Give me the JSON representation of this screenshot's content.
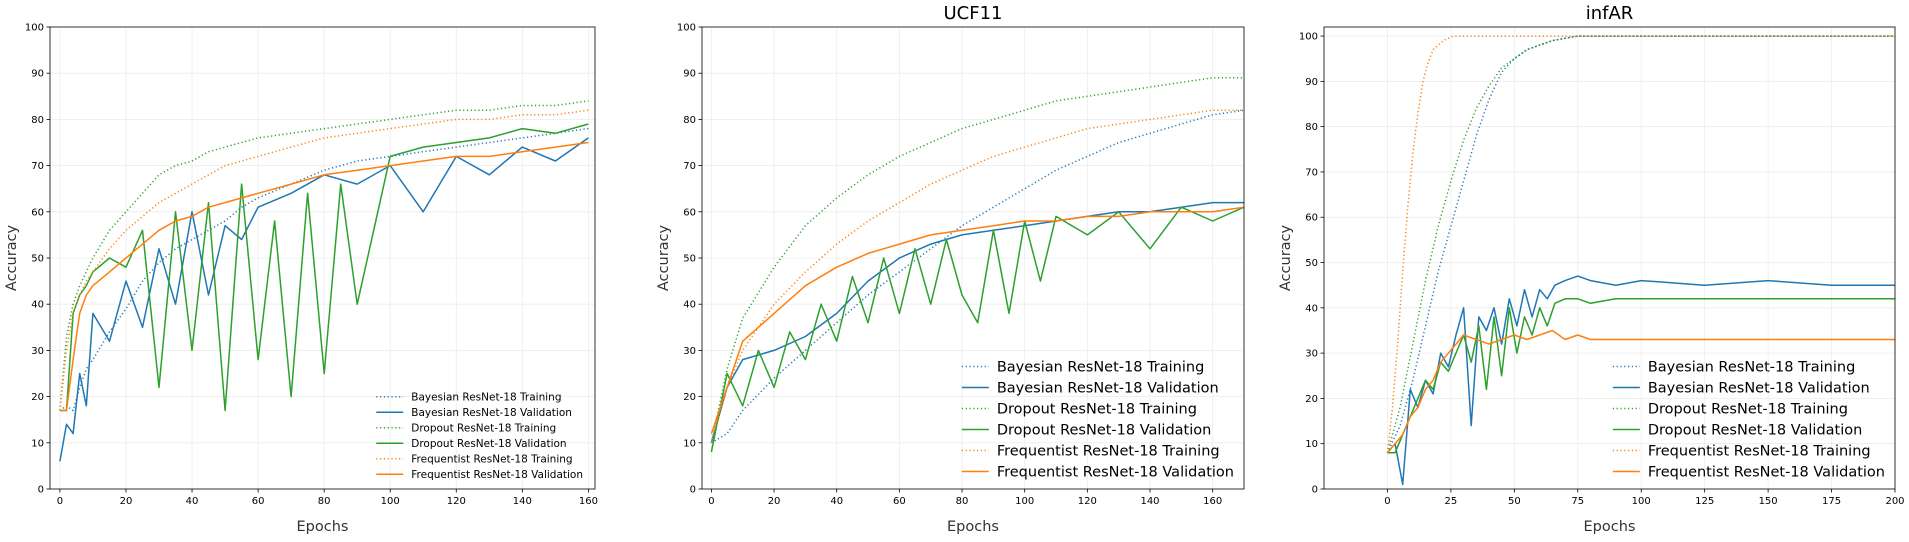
{
  "figure": {
    "background": "#ffffff"
  },
  "legend_labels": [
    "Bayesian ResNet-18 Training",
    "Bayesian ResNet-18 Validation",
    "Dropout ResNet-18 Training",
    "Dropout ResNet-18 Validation",
    "Frequentist ResNet-18 Training",
    "Frequentist ResNet-18 Validation"
  ],
  "series_styles": [
    {
      "color": "#1f77b4",
      "dash": "dotted"
    },
    {
      "color": "#1f77b4",
      "dash": "solid"
    },
    {
      "color": "#2ca02c",
      "dash": "dotted"
    },
    {
      "color": "#2ca02c",
      "dash": "solid"
    },
    {
      "color": "#ff7f0e",
      "dash": "dotted"
    },
    {
      "color": "#ff7f0e",
      "dash": "solid"
    }
  ],
  "chart_data": [
    {
      "type": "line",
      "title": "",
      "xlabel": "Epochs",
      "ylabel": "Accuracy",
      "xlim": [
        -3,
        162
      ],
      "ylim": [
        0,
        100
      ],
      "xticks": [
        0,
        20,
        40,
        60,
        80,
        100,
        120,
        140,
        160
      ],
      "yticks": [
        0,
        10,
        20,
        30,
        40,
        50,
        60,
        70,
        80,
        90,
        100
      ],
      "grid": true,
      "legend": "lower-right",
      "series": [
        {
          "name": "Bayesian ResNet-18 Training",
          "x": [
            0,
            2,
            4,
            6,
            8,
            10,
            15,
            20,
            25,
            30,
            35,
            40,
            45,
            50,
            55,
            60,
            70,
            80,
            90,
            100,
            110,
            120,
            130,
            140,
            150,
            160
          ],
          "y": [
            17,
            18,
            17,
            22,
            26,
            28,
            34,
            39,
            45,
            49,
            52,
            54,
            56,
            58,
            61,
            63,
            66,
            69,
            71,
            72,
            73,
            74,
            75,
            76,
            77,
            78
          ]
        },
        {
          "name": "Bayesian ResNet-18 Validation",
          "x": [
            0,
            2,
            4,
            6,
            8,
            10,
            15,
            20,
            25,
            30,
            35,
            40,
            45,
            50,
            55,
            60,
            70,
            80,
            90,
            100,
            110,
            120,
            130,
            140,
            150,
            160
          ],
          "y": [
            6,
            14,
            12,
            25,
            18,
            38,
            32,
            45,
            35,
            52,
            40,
            60,
            42,
            57,
            54,
            61,
            64,
            68,
            66,
            70,
            60,
            72,
            68,
            74,
            71,
            76
          ]
        },
        {
          "name": "Dropout ResNet-18 Training",
          "x": [
            0,
            2,
            4,
            6,
            8,
            10,
            15,
            20,
            25,
            30,
            35,
            40,
            45,
            50,
            55,
            60,
            70,
            80,
            90,
            100,
            110,
            120,
            130,
            140,
            150,
            160
          ],
          "y": [
            17,
            33,
            40,
            44,
            47,
            50,
            56,
            60,
            64,
            68,
            70,
            71,
            73,
            74,
            75,
            76,
            77,
            78,
            79,
            80,
            81,
            82,
            82,
            83,
            83,
            84
          ]
        },
        {
          "name": "Dropout ResNet-18 Validation",
          "x": [
            0,
            2,
            4,
            6,
            8,
            10,
            15,
            20,
            25,
            30,
            35,
            40,
            45,
            50,
            55,
            60,
            65,
            70,
            75,
            80,
            85,
            90,
            100,
            110,
            120,
            130,
            140,
            150,
            160
          ],
          "y": [
            17,
            17,
            38,
            42,
            44,
            47,
            50,
            48,
            56,
            22,
            60,
            30,
            62,
            17,
            66,
            28,
            58,
            20,
            64,
            25,
            66,
            40,
            72,
            74,
            75,
            76,
            78,
            77,
            79
          ]
        },
        {
          "name": "Frequentist ResNet-18 Training",
          "x": [
            0,
            2,
            4,
            6,
            8,
            10,
            15,
            20,
            25,
            30,
            35,
            40,
            45,
            50,
            55,
            60,
            70,
            80,
            90,
            100,
            110,
            120,
            130,
            140,
            150,
            160
          ],
          "y": [
            17,
            30,
            38,
            42,
            45,
            47,
            52,
            56,
            59,
            62,
            64,
            66,
            68,
            70,
            71,
            72,
            74,
            76,
            77,
            78,
            79,
            80,
            80,
            81,
            81,
            82
          ]
        },
        {
          "name": "Frequentist ResNet-18 Validation",
          "x": [
            0,
            2,
            4,
            6,
            8,
            10,
            15,
            20,
            25,
            30,
            35,
            40,
            45,
            50,
            55,
            60,
            70,
            80,
            90,
            100,
            110,
            120,
            130,
            140,
            150,
            160
          ],
          "y": [
            17,
            17,
            28,
            38,
            42,
            44,
            47,
            50,
            53,
            56,
            58,
            59,
            61,
            62,
            63,
            64,
            66,
            68,
            69,
            70,
            71,
            72,
            72,
            73,
            74,
            75
          ]
        }
      ]
    },
    {
      "type": "line",
      "title": "UCF11",
      "xlabel": "Epochs",
      "ylabel": "Accuracy",
      "xlim": [
        -3,
        170
      ],
      "ylim": [
        0,
        100
      ],
      "xticks": [
        0,
        20,
        40,
        60,
        80,
        100,
        120,
        140,
        160
      ],
      "yticks": [
        0,
        10,
        20,
        30,
        40,
        50,
        60,
        70,
        80,
        90,
        100
      ],
      "grid": true,
      "legend": "lower-right",
      "series": [
        {
          "name": "Bayesian ResNet-18 Training",
          "x": [
            0,
            5,
            10,
            20,
            30,
            40,
            50,
            60,
            70,
            80,
            90,
            100,
            110,
            120,
            130,
            140,
            150,
            160,
            170
          ],
          "y": [
            10,
            12,
            17,
            24,
            30,
            36,
            42,
            47,
            52,
            57,
            61,
            65,
            69,
            72,
            75,
            77,
            79,
            81,
            82
          ]
        },
        {
          "name": "Bayesian ResNet-18 Validation",
          "x": [
            0,
            5,
            10,
            20,
            30,
            40,
            50,
            60,
            70,
            80,
            90,
            100,
            110,
            120,
            130,
            140,
            150,
            160,
            170
          ],
          "y": [
            10,
            22,
            28,
            30,
            33,
            38,
            45,
            50,
            53,
            55,
            56,
            57,
            58,
            59,
            60,
            60,
            61,
            62,
            62
          ]
        },
        {
          "name": "Dropout ResNet-18 Training",
          "x": [
            0,
            5,
            10,
            20,
            30,
            40,
            50,
            60,
            70,
            80,
            90,
            100,
            110,
            120,
            130,
            140,
            150,
            160,
            170
          ],
          "y": [
            10,
            26,
            37,
            48,
            57,
            63,
            68,
            72,
            75,
            78,
            80,
            82,
            84,
            85,
            86,
            87,
            88,
            89,
            89
          ]
        },
        {
          "name": "Dropout ResNet-18 Validation",
          "x": [
            0,
            5,
            10,
            15,
            20,
            25,
            30,
            35,
            40,
            45,
            50,
            55,
            60,
            65,
            70,
            75,
            80,
            85,
            90,
            95,
            100,
            105,
            110,
            120,
            130,
            140,
            150,
            160,
            170
          ],
          "y": [
            8,
            25,
            18,
            30,
            22,
            34,
            28,
            40,
            32,
            46,
            36,
            50,
            38,
            52,
            40,
            54,
            42,
            36,
            56,
            38,
            58,
            45,
            59,
            55,
            60,
            52,
            61,
            58,
            61
          ]
        },
        {
          "name": "Frequentist ResNet-18 Training",
          "x": [
            0,
            5,
            10,
            20,
            30,
            40,
            50,
            60,
            70,
            80,
            90,
            100,
            110,
            120,
            130,
            140,
            150,
            160,
            170
          ],
          "y": [
            10,
            22,
            30,
            40,
            47,
            53,
            58,
            62,
            66,
            69,
            72,
            74,
            76,
            78,
            79,
            80,
            81,
            82,
            82
          ]
        },
        {
          "name": "Frequentist ResNet-18 Validation",
          "x": [
            0,
            5,
            10,
            20,
            30,
            40,
            50,
            60,
            70,
            80,
            90,
            100,
            110,
            120,
            130,
            140,
            150,
            160,
            170
          ],
          "y": [
            12,
            22,
            32,
            38,
            44,
            48,
            51,
            53,
            55,
            56,
            57,
            58,
            58,
            59,
            59,
            60,
            60,
            60,
            61
          ]
        }
      ]
    },
    {
      "type": "line",
      "title": "infAR",
      "xlabel": "Epochs",
      "ylabel": "Accuracy",
      "xlim": [
        -25,
        200
      ],
      "ylim": [
        0,
        102
      ],
      "xticks": [
        0,
        25,
        50,
        75,
        100,
        125,
        150,
        175,
        200
      ],
      "yticks": [
        0,
        10,
        20,
        30,
        40,
        50,
        60,
        70,
        80,
        90,
        100
      ],
      "grid": true,
      "legend": "lower-right",
      "series": [
        {
          "name": "Bayesian ResNet-18 Training",
          "x": [
            0,
            5,
            10,
            15,
            20,
            25,
            30,
            35,
            40,
            45,
            50,
            55,
            60,
            65,
            70,
            75,
            80,
            90,
            100,
            125,
            150,
            175,
            200
          ],
          "y": [
            8,
            14,
            24,
            36,
            48,
            58,
            68,
            78,
            86,
            92,
            95,
            97,
            98,
            99,
            99.5,
            100,
            100,
            100,
            100,
            100,
            100,
            100,
            100
          ]
        },
        {
          "name": "Bayesian ResNet-18 Validation",
          "x": [
            0,
            3,
            6,
            9,
            12,
            15,
            18,
            21,
            24,
            27,
            30,
            33,
            36,
            39,
            42,
            45,
            48,
            51,
            54,
            57,
            60,
            63,
            66,
            70,
            75,
            80,
            90,
            100,
            125,
            150,
            175,
            200
          ],
          "y": [
            8,
            10,
            1,
            22,
            18,
            24,
            21,
            30,
            27,
            34,
            40,
            14,
            38,
            35,
            40,
            32,
            42,
            36,
            44,
            38,
            44,
            42,
            45,
            46,
            47,
            46,
            45,
            46,
            45,
            46,
            45,
            45
          ]
        },
        {
          "name": "Dropout ResNet-18 Training",
          "x": [
            0,
            5,
            10,
            15,
            20,
            25,
            30,
            35,
            40,
            45,
            50,
            55,
            60,
            65,
            70,
            75,
            80,
            90,
            100,
            125,
            150,
            175,
            200
          ],
          "y": [
            8,
            18,
            32,
            46,
            58,
            68,
            77,
            84,
            89,
            93,
            95,
            97,
            98,
            99,
            99.5,
            100,
            100,
            100,
            100,
            100,
            100,
            100,
            100
          ]
        },
        {
          "name": "Dropout ResNet-18 Validation",
          "x": [
            0,
            3,
            6,
            9,
            12,
            15,
            18,
            21,
            24,
            27,
            30,
            33,
            36,
            39,
            42,
            45,
            48,
            51,
            54,
            57,
            60,
            63,
            66,
            70,
            75,
            80,
            90,
            100,
            125,
            150,
            175,
            200
          ],
          "y": [
            8,
            8,
            12,
            16,
            20,
            24,
            22,
            28,
            26,
            30,
            34,
            28,
            36,
            22,
            38,
            25,
            40,
            30,
            38,
            34,
            40,
            36,
            41,
            42,
            42,
            41,
            42,
            42,
            42,
            42,
            42,
            42
          ]
        },
        {
          "name": "Frequentist ResNet-18 Training",
          "x": [
            0,
            2,
            4,
            6,
            8,
            10,
            12,
            14,
            16,
            18,
            20,
            22,
            24,
            26,
            28,
            30,
            40,
            50,
            75,
            100,
            125,
            150,
            175,
            200
          ],
          "y": [
            8,
            18,
            32,
            48,
            62,
            74,
            83,
            90,
            94,
            97,
            98,
            99,
            99.5,
            100,
            100,
            100,
            100,
            100,
            100,
            100,
            100,
            100,
            100,
            100
          ]
        },
        {
          "name": "Frequentist ResNet-18 Validation",
          "x": [
            0,
            3,
            6,
            9,
            12,
            15,
            18,
            21,
            24,
            27,
            30,
            35,
            40,
            45,
            50,
            55,
            60,
            65,
            70,
            75,
            80,
            90,
            100,
            125,
            150,
            175,
            200
          ],
          "y": [
            8,
            10,
            12,
            16,
            18,
            22,
            24,
            28,
            30,
            32,
            34,
            33,
            32,
            33,
            34,
            33,
            34,
            35,
            33,
            34,
            33,
            33,
            33,
            33,
            33,
            33,
            33
          ]
        }
      ]
    }
  ]
}
